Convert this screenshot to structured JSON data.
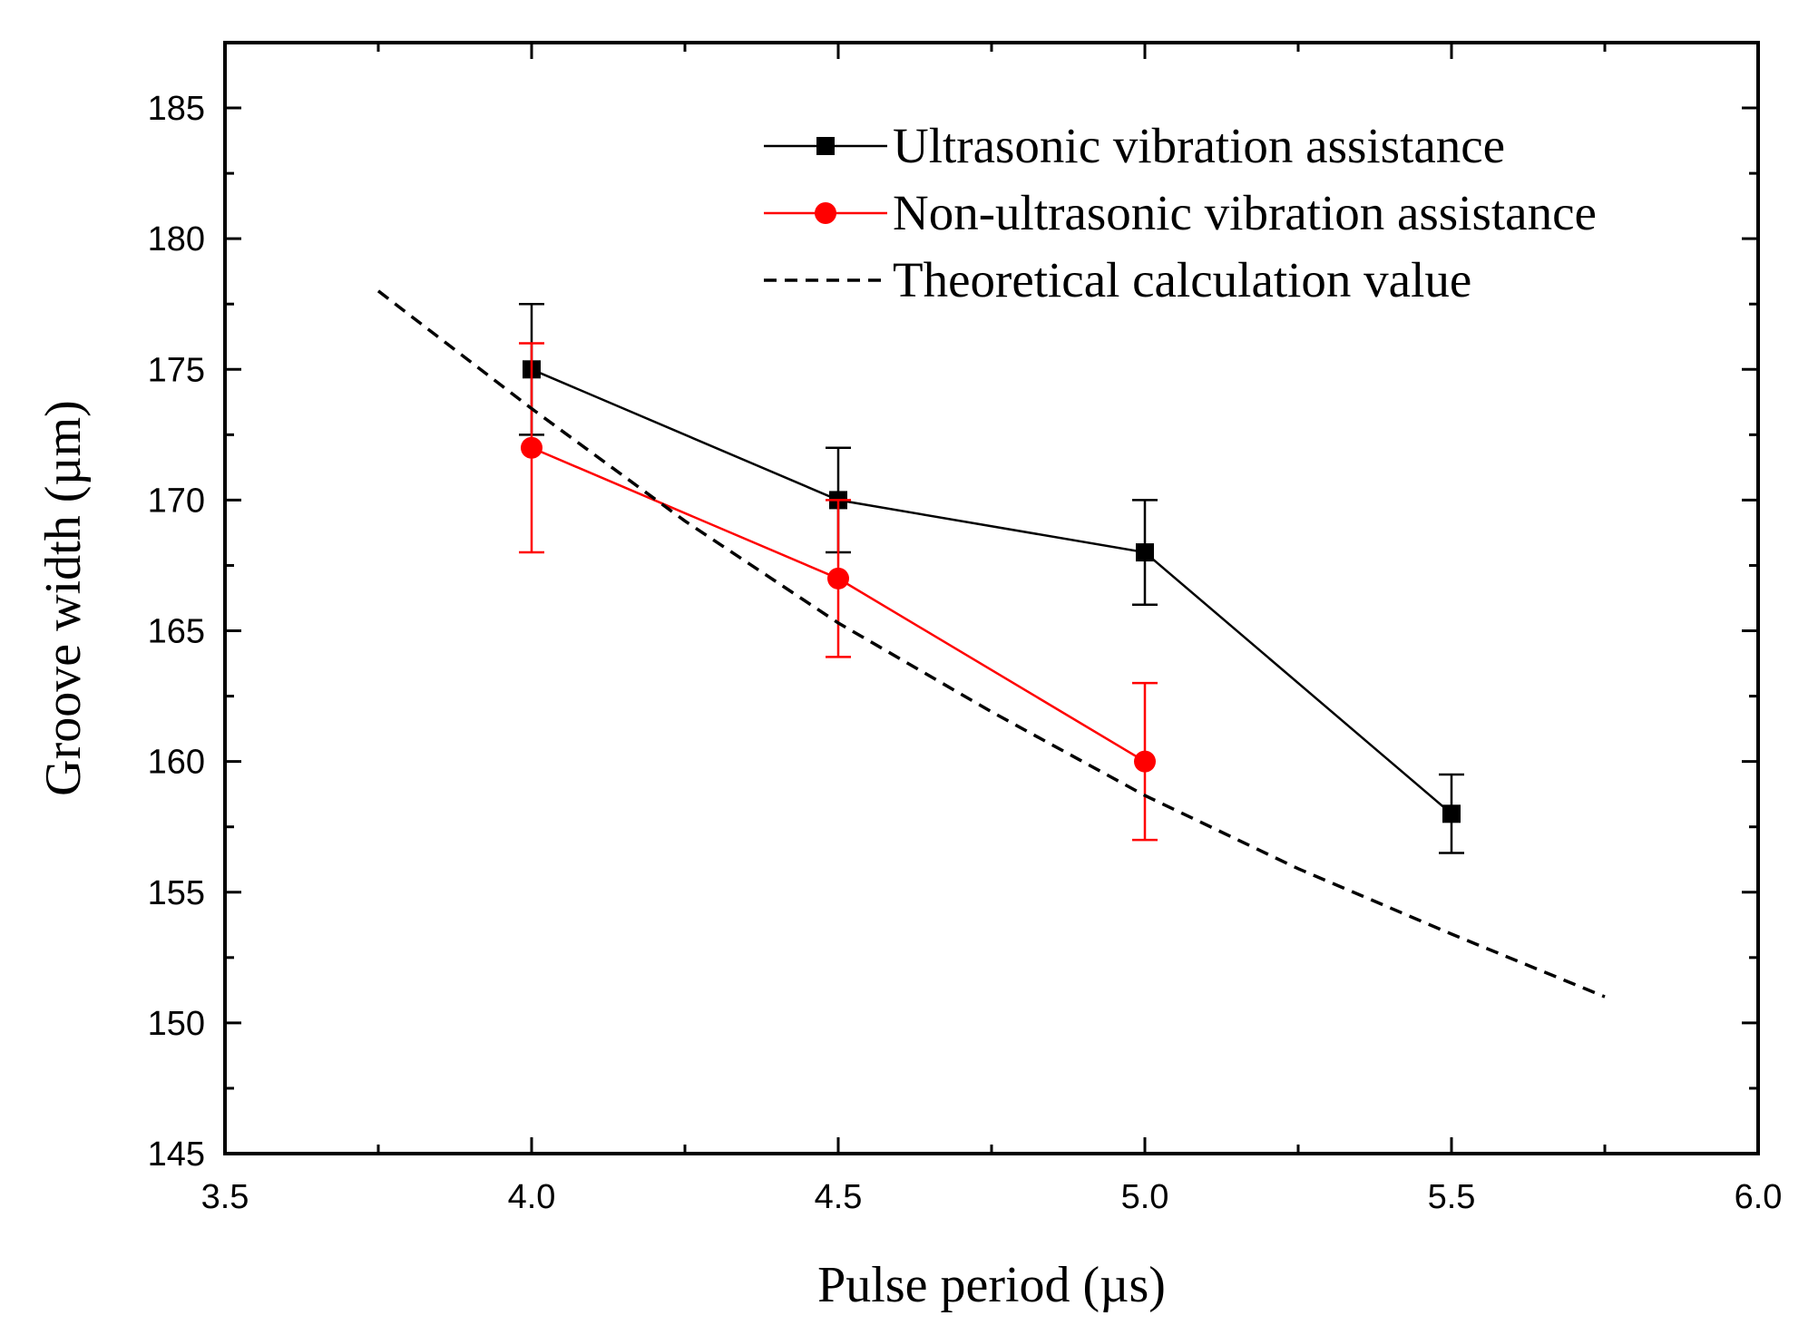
{
  "chart_data": {
    "type": "line",
    "title": "",
    "xlabel": "Pulse period (µs)",
    "ylabel": "Groove width (µm)",
    "xlim": [
      3.5,
      6.0
    ],
    "ylim": [
      145,
      187.5
    ],
    "x_ticks": [
      "3.5",
      "4.0",
      "4.5",
      "5.0",
      "5.5",
      "6.0"
    ],
    "y_ticks": [
      "145",
      "150",
      "155",
      "160",
      "165",
      "170",
      "175",
      "180",
      "185"
    ],
    "grid": false,
    "legend_position": "top-right",
    "series": [
      {
        "name": "Ultrasonic vibration assistance",
        "color": "#000000",
        "marker": "square",
        "line": "solid",
        "x": [
          4.0,
          4.5,
          5.0,
          5.5
        ],
        "y": [
          175,
          170,
          168,
          158
        ],
        "err": [
          2.5,
          2.0,
          2.0,
          1.5
        ]
      },
      {
        "name": "Non-ultrasonic vibration assistance",
        "color": "#ff0000",
        "marker": "circle",
        "line": "solid",
        "x": [
          4.0,
          4.5,
          5.0
        ],
        "y": [
          172,
          167,
          160
        ],
        "err": [
          4.0,
          3.0,
          3.0
        ]
      },
      {
        "name": "Theoretical calculation value",
        "color": "#000000",
        "marker": "none",
        "line": "dashed",
        "x": [
          3.75,
          4.0,
          4.25,
          4.5,
          4.75,
          5.0,
          5.25,
          5.5,
          5.75
        ],
        "y": [
          178,
          173.5,
          169.2,
          165.3,
          161.9,
          158.7,
          155.9,
          153.4,
          151
        ]
      }
    ]
  }
}
